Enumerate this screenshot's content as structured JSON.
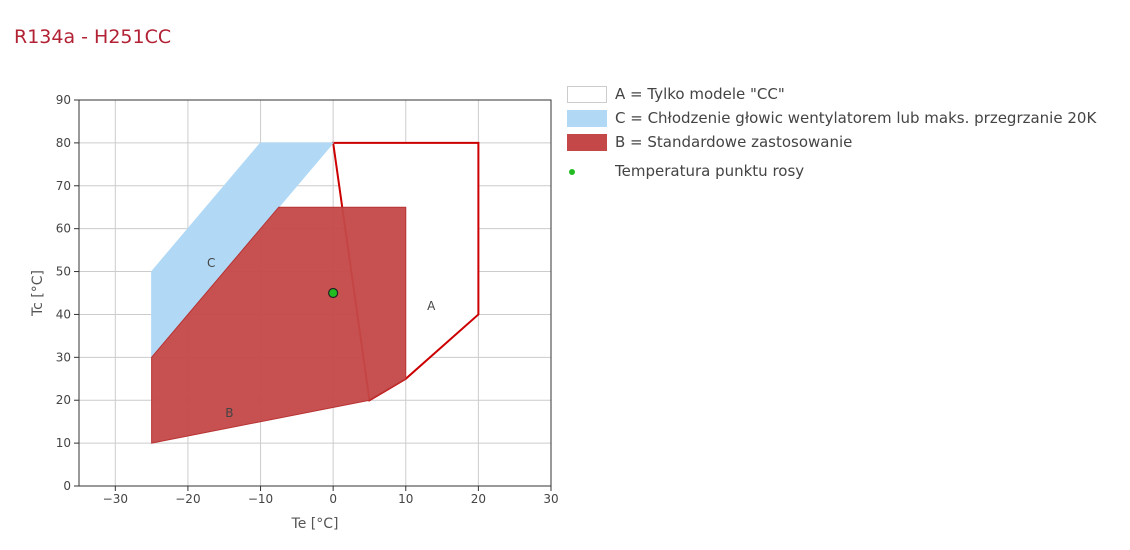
{
  "title": "R134a - H251CC",
  "chart_data": {
    "type": "area",
    "xlabel": "Te [°C]",
    "ylabel": "Tc [°C]",
    "xlim": [
      -35,
      30
    ],
    "ylim": [
      0,
      90
    ],
    "x_ticks": [
      -30,
      -20,
      -10,
      0,
      10,
      20,
      30
    ],
    "y_ticks": [
      0,
      10,
      20,
      30,
      40,
      50,
      60,
      70,
      80,
      90
    ],
    "grid": true,
    "legend_position": "right",
    "regions": [
      {
        "id": "A",
        "legend": "A = Tylko modele \"CC\"",
        "label": "A",
        "label_at": [
          13.5,
          42
        ],
        "fill": "#ffffff",
        "stroke": "#cc0000",
        "points": [
          [
            0,
            80
          ],
          [
            20,
            80
          ],
          [
            20,
            40
          ],
          [
            10,
            25
          ],
          [
            5,
            20
          ]
        ]
      },
      {
        "id": "C",
        "legend": "C = Chłodzenie głowic wentylatorem lub maks. przegrzanie 20K",
        "label": "C",
        "label_at": [
          -16.8,
          52
        ],
        "fill": "#b1d9f6",
        "stroke": "#b1d9f6",
        "points": [
          [
            -25,
            50
          ],
          [
            -10,
            80
          ],
          [
            0,
            80
          ],
          [
            -25,
            30
          ]
        ]
      },
      {
        "id": "B",
        "legend": "B = Standardowe zastosowanie",
        "label": "B",
        "label_at": [
          -14.3,
          17
        ],
        "fill": "#c44848",
        "stroke": "#b83232",
        "points": [
          [
            -25,
            10
          ],
          [
            -25,
            30
          ],
          [
            -7.5,
            65
          ],
          [
            10,
            65
          ],
          [
            10,
            25
          ],
          [
            5,
            20
          ]
        ]
      }
    ],
    "series": [
      {
        "name": "Temperatura punktu rosy",
        "type": "scatter",
        "color": "#22bb22",
        "points": [
          [
            0,
            45
          ]
        ]
      }
    ]
  }
}
